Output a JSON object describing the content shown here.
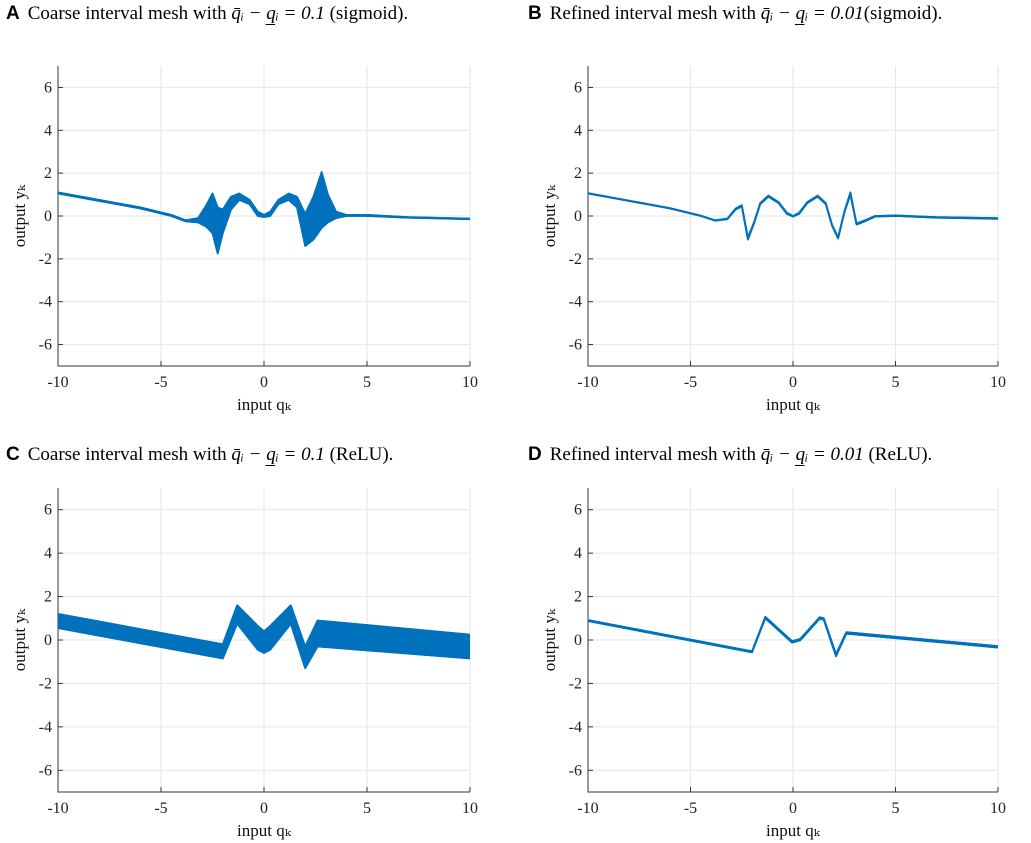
{
  "chart_data": [
    {
      "panel_letter": "A",
      "title_prefix": "Coarse interval mesh with ",
      "title_math": "q̄ᵢ − q̲ᵢ = 0.1",
      "title_suffix": " (sigmoid).",
      "type": "line",
      "style": "band-jagged",
      "xlabel": "input qₖ",
      "ylabel": "output yₖ",
      "xlim": [
        -10,
        10
      ],
      "ylim": [
        -7,
        7
      ],
      "xticks": [
        -10,
        -5,
        0,
        5,
        10
      ],
      "xtick_labels": [
        "-10",
        "-5",
        "0",
        "5",
        "10"
      ],
      "yticks": [
        6,
        4,
        2,
        0,
        -2,
        -4,
        -6
      ],
      "ytick_labels": [
        "6",
        "4",
        "2",
        "0",
        "-2",
        "-4",
        "-6"
      ],
      "series": [
        {
          "name": "upper bound",
          "x": [
            -10,
            -8,
            -6,
            -4.5,
            -3.8,
            -3.2,
            -2.8,
            -2.5,
            -2.25,
            -2.0,
            -1.6,
            -1.2,
            -0.7,
            -0.3,
            0,
            0.3,
            0.7,
            1.2,
            1.6,
            2.0,
            2.4,
            2.8,
            3.1,
            3.5,
            4.0,
            5,
            7,
            10
          ],
          "y": [
            1.1,
            0.75,
            0.4,
            0.05,
            -0.2,
            -0.1,
            0.5,
            1.05,
            0.4,
            0.3,
            0.9,
            1.05,
            0.75,
            0.2,
            0.05,
            0.2,
            0.75,
            1.05,
            0.9,
            0.1,
            0.9,
            2.05,
            1.0,
            0.2,
            0.05,
            0.05,
            -0.05,
            -0.12
          ]
        },
        {
          "name": "lower bound",
          "x": [
            -10,
            -8,
            -6,
            -4.5,
            -3.8,
            -3.2,
            -2.8,
            -2.5,
            -2.25,
            -2.0,
            -1.6,
            -1.2,
            -0.7,
            -0.3,
            0,
            0.3,
            0.7,
            1.2,
            1.6,
            2.0,
            2.4,
            2.8,
            3.1,
            3.5,
            4.0,
            5,
            7,
            10
          ],
          "y": [
            1.05,
            0.7,
            0.35,
            0.0,
            -0.25,
            -0.3,
            -0.5,
            -0.8,
            -1.75,
            -0.8,
            0.3,
            0.75,
            0.55,
            0.0,
            -0.05,
            0.0,
            0.55,
            0.75,
            0.4,
            -1.4,
            -1.1,
            -0.55,
            -0.3,
            -0.1,
            0.0,
            0.0,
            -0.08,
            -0.15
          ]
        }
      ]
    },
    {
      "panel_letter": "B",
      "title_prefix": "Refined interval mesh with ",
      "title_math": "q̄ᵢ − q̲ᵢ = 0.01",
      "title_suffix": "(sigmoid).",
      "type": "line",
      "style": "band",
      "xlabel": "input qₖ",
      "ylabel": "output yₖ",
      "xlim": [
        -10,
        10
      ],
      "ylim": [
        -7,
        7
      ],
      "xticks": [
        -10,
        -5,
        0,
        5,
        10
      ],
      "xtick_labels": [
        "-10",
        "-5",
        "0",
        "5",
        "10"
      ],
      "yticks": [
        6,
        4,
        2,
        0,
        -2,
        -4,
        -6
      ],
      "ytick_labels": [
        "6",
        "4",
        "2",
        "0",
        "-2",
        "-4",
        "-6"
      ],
      "series": [
        {
          "name": "upper bound",
          "x": [
            -10,
            -8,
            -6,
            -4.5,
            -3.8,
            -3.2,
            -2.8,
            -2.5,
            -2.2,
            -1.9,
            -1.6,
            -1.2,
            -0.7,
            -0.3,
            0,
            0.3,
            0.7,
            1.2,
            1.6,
            1.9,
            2.2,
            2.5,
            2.8,
            3.1,
            3.5,
            4.0,
            5,
            7,
            10
          ],
          "y": [
            1.07,
            0.72,
            0.37,
            0.02,
            -0.2,
            -0.12,
            0.35,
            0.5,
            -1.0,
            -0.3,
            0.6,
            0.95,
            0.65,
            0.15,
            0.0,
            0.15,
            0.65,
            0.95,
            0.6,
            -0.4,
            -1.0,
            0.2,
            1.1,
            -0.35,
            -0.2,
            0.0,
            0.03,
            -0.05,
            -0.1
          ]
        },
        {
          "name": "lower bound",
          "x": [
            -10,
            -8,
            -6,
            -4.5,
            -3.8,
            -3.2,
            -2.8,
            -2.5,
            -2.2,
            -1.9,
            -1.6,
            -1.2,
            -0.7,
            -0.3,
            0,
            0.3,
            0.7,
            1.2,
            1.6,
            1.9,
            2.2,
            2.5,
            2.8,
            3.1,
            3.5,
            4.0,
            5,
            7,
            10
          ],
          "y": [
            1.05,
            0.7,
            0.35,
            0.0,
            -0.22,
            -0.15,
            0.3,
            0.45,
            -1.1,
            -0.35,
            0.55,
            0.9,
            0.6,
            0.1,
            -0.03,
            0.1,
            0.6,
            0.9,
            0.55,
            -0.45,
            -1.05,
            0.15,
            1.0,
            -0.4,
            -0.25,
            -0.03,
            0.0,
            -0.08,
            -0.13
          ]
        }
      ]
    },
    {
      "panel_letter": "C",
      "title_prefix": "Coarse interval mesh with ",
      "title_math": "q̄ᵢ − q̲ᵢ = 0.1",
      "title_suffix": " (ReLU).",
      "type": "line",
      "style": "band-jagged",
      "xlabel": "input qₖ",
      "ylabel": "output yₖ",
      "xlim": [
        -10,
        10
      ],
      "ylim": [
        -7,
        7
      ],
      "xticks": [
        -10,
        -5,
        0,
        5,
        10
      ],
      "xtick_labels": [
        "-10",
        "-5",
        "0",
        "5",
        "10"
      ],
      "yticks": [
        6,
        4,
        2,
        0,
        -2,
        -4,
        -6
      ],
      "ytick_labels": [
        "6",
        "4",
        "2",
        "0",
        "-2",
        "-4",
        "-6"
      ],
      "series": [
        {
          "name": "upper bound",
          "x": [
            -10,
            -2.0,
            -1.3,
            -0.3,
            0.0,
            0.3,
            1.3,
            2.0,
            2.6,
            10
          ],
          "y": [
            1.2,
            -0.2,
            1.6,
            0.65,
            0.4,
            0.65,
            1.6,
            -0.3,
            0.9,
            0.25
          ]
        },
        {
          "name": "lower bound",
          "x": [
            -10,
            -2.0,
            -1.3,
            -0.3,
            0.0,
            0.3,
            1.3,
            2.0,
            2.6,
            10
          ],
          "y": [
            0.55,
            -0.85,
            0.75,
            -0.45,
            -0.6,
            -0.45,
            0.75,
            -1.3,
            -0.3,
            -0.85
          ]
        }
      ]
    },
    {
      "panel_letter": "D",
      "title_prefix": "Refined interval mesh with ",
      "title_math": "q̄ᵢ − q̲ᵢ = 0.01",
      "title_suffix": " (ReLU).",
      "type": "line",
      "style": "band",
      "xlabel": "input qₖ",
      "ylabel": "output yₖ",
      "xlim": [
        -10,
        10
      ],
      "ylim": [
        -7,
        7
      ],
      "xticks": [
        -10,
        -5,
        0,
        5,
        10
      ],
      "xtick_labels": [
        "-10",
        "-5",
        "0",
        "5",
        "10"
      ],
      "yticks": [
        6,
        4,
        2,
        0,
        -2,
        -4,
        -6
      ],
      "ytick_labels": [
        "6",
        "4",
        "2",
        "0",
        "-2",
        "-4",
        "-6"
      ],
      "series": [
        {
          "name": "upper bound",
          "x": [
            -10,
            -2.0,
            -1.35,
            -0.05,
            0.35,
            1.3,
            1.5,
            2.1,
            2.6,
            10
          ],
          "y": [
            0.92,
            -0.52,
            1.07,
            -0.05,
            0.05,
            1.05,
            1.0,
            -0.65,
            0.36,
            -0.28
          ]
        },
        {
          "name": "lower bound",
          "x": [
            -10,
            -2.0,
            -1.35,
            -0.05,
            0.35,
            1.3,
            1.5,
            2.1,
            2.6,
            10
          ],
          "y": [
            0.87,
            -0.57,
            1.0,
            -0.12,
            -0.02,
            0.98,
            0.93,
            -0.75,
            0.29,
            -0.35
          ]
        }
      ]
    }
  ],
  "colors": {
    "line": "#0072bd"
  }
}
